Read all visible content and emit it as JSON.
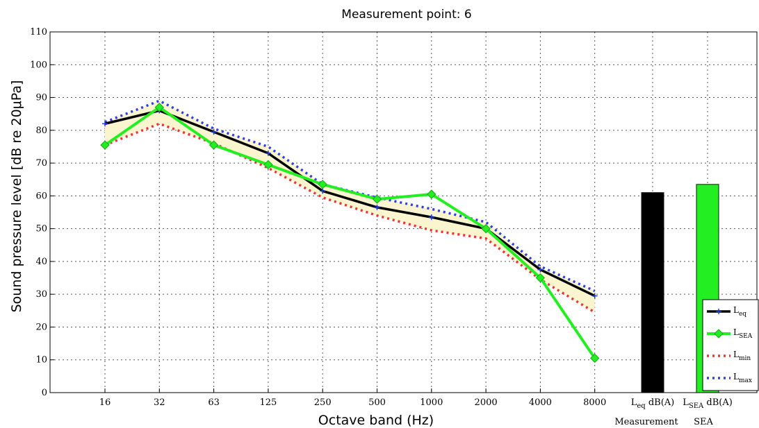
{
  "chart_data": {
    "type": "line",
    "title": "Measurement point: 6",
    "xlabel": "Octave band (Hz)",
    "ylabel": "Sound pressure level [dB re 20μPa]",
    "categories": [
      "16",
      "32",
      "63",
      "125",
      "250",
      "500",
      "1000",
      "2000",
      "4000",
      "8000"
    ],
    "ylim": [
      0,
      110
    ],
    "yticks": [
      0,
      10,
      20,
      30,
      40,
      50,
      60,
      70,
      80,
      90,
      100,
      110
    ],
    "grid": true,
    "series": [
      {
        "name": "Leq",
        "name_main": "L",
        "name_sub": "eq",
        "color": "#000000",
        "marker_color": "#1f3fd6",
        "values": [
          82,
          86,
          79.5,
          73,
          61.5,
          56.5,
          53.5,
          50,
          37.5,
          29.5
        ]
      },
      {
        "name": "LSEA",
        "name_main": "L",
        "name_sub": "SEA",
        "color": "#22ee22",
        "values": [
          75.5,
          87,
          75.5,
          69.5,
          63.5,
          59,
          60.5,
          50,
          35,
          10.5
        ]
      },
      {
        "name": "Lmin",
        "name_main": "L",
        "name_sub": "min",
        "color": "#ee3333",
        "values": [
          75.5,
          82,
          76,
          68.5,
          59.5,
          54,
          49.5,
          47,
          34.5,
          24.5
        ]
      },
      {
        "name": "Lmax",
        "name_main": "L",
        "name_sub": "max",
        "color": "#2f3fe6",
        "values": [
          82.5,
          89,
          80.5,
          75,
          63.5,
          59.5,
          56,
          52,
          38.5,
          31
        ]
      }
    ],
    "summary_bars": [
      {
        "label_main": "L",
        "label_sub": "eq",
        "label_suffix": " dB(A)",
        "value": 61,
        "color": "#000000"
      },
      {
        "label_main": "L",
        "label_sub": "SEA",
        "label_suffix": " dB(A)",
        "value": 63.5,
        "color": "#22ee22"
      }
    ],
    "summary_caption_main": "Measurement",
    "summary_caption_side": "SEA",
    "legend_position": "bottom-right"
  }
}
